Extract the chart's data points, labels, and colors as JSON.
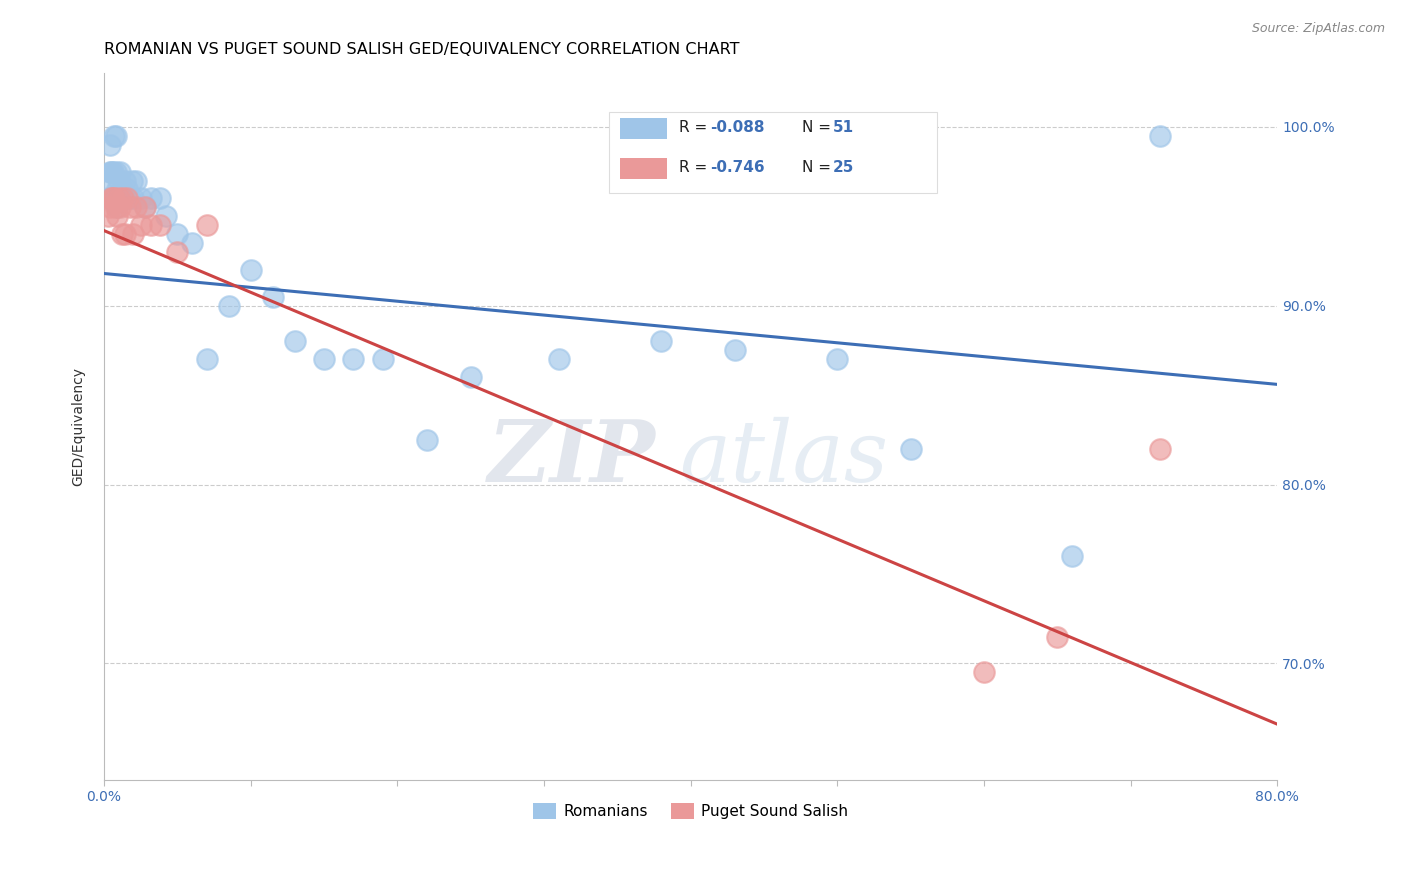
{
  "title": "ROMANIAN VS PUGET SOUND SALISH GED/EQUIVALENCY CORRELATION CHART",
  "source": "Source: ZipAtlas.com",
  "ylabel": "GED/Equivalency",
  "xlim": [
    0.0,
    0.8
  ],
  "ylim": [
    0.635,
    1.03
  ],
  "yticks": [
    0.7,
    0.8,
    0.9,
    1.0
  ],
  "ytick_labels": [
    "70.0%",
    "80.0%",
    "90.0%",
    "100.0%"
  ],
  "xticks": [
    0.0,
    0.1,
    0.2,
    0.3,
    0.4,
    0.5,
    0.6,
    0.7,
    0.8
  ],
  "xtick_labels": [
    "0.0%",
    "",
    "",
    "",
    "",
    "",
    "",
    "",
    "80.0%"
  ],
  "blue_color": "#9fc5e8",
  "pink_color": "#ea9999",
  "blue_line_color": "#3d6eb5",
  "pink_line_color": "#cc4444",
  "legend_label_blue": "Romanians",
  "legend_label_pink": "Puget Sound Salish",
  "watermark_zip": "ZIP",
  "watermark_atlas": "atlas",
  "blue_scatter_x": [
    0.002,
    0.003,
    0.004,
    0.004,
    0.005,
    0.005,
    0.006,
    0.006,
    0.007,
    0.007,
    0.008,
    0.008,
    0.009,
    0.009,
    0.01,
    0.01,
    0.011,
    0.011,
    0.012,
    0.013,
    0.014,
    0.015,
    0.016,
    0.018,
    0.019,
    0.02,
    0.022,
    0.025,
    0.028,
    0.032,
    0.038,
    0.042,
    0.05,
    0.06,
    0.07,
    0.085,
    0.1,
    0.115,
    0.13,
    0.15,
    0.17,
    0.19,
    0.22,
    0.25,
    0.31,
    0.38,
    0.43,
    0.5,
    0.55,
    0.66,
    0.72
  ],
  "blue_scatter_y": [
    0.97,
    0.96,
    0.975,
    0.99,
    0.96,
    0.975,
    0.96,
    0.975,
    0.995,
    0.96,
    0.975,
    0.995,
    0.965,
    0.955,
    0.96,
    0.97,
    0.96,
    0.975,
    0.965,
    0.96,
    0.97,
    0.96,
    0.965,
    0.96,
    0.97,
    0.96,
    0.97,
    0.96,
    0.955,
    0.96,
    0.96,
    0.95,
    0.94,
    0.935,
    0.87,
    0.9,
    0.92,
    0.905,
    0.88,
    0.87,
    0.87,
    0.87,
    0.825,
    0.86,
    0.87,
    0.88,
    0.875,
    0.87,
    0.82,
    0.76,
    0.995
  ],
  "pink_scatter_x": [
    0.003,
    0.004,
    0.005,
    0.006,
    0.007,
    0.008,
    0.009,
    0.01,
    0.011,
    0.012,
    0.013,
    0.014,
    0.016,
    0.018,
    0.02,
    0.022,
    0.025,
    0.028,
    0.032,
    0.038,
    0.05,
    0.07,
    0.6,
    0.65,
    0.72
  ],
  "pink_scatter_y": [
    0.95,
    0.955,
    0.96,
    0.96,
    0.96,
    0.955,
    0.95,
    0.96,
    0.955,
    0.94,
    0.96,
    0.94,
    0.96,
    0.955,
    0.94,
    0.955,
    0.945,
    0.955,
    0.945,
    0.945,
    0.93,
    0.945,
    0.695,
    0.715,
    0.82
  ],
  "blue_trendline_x": [
    0.0,
    0.8
  ],
  "blue_trendline_y": [
    0.918,
    0.856
  ],
  "pink_trendline_x": [
    0.0,
    0.8
  ],
  "pink_trendline_y": [
    0.942,
    0.666
  ],
  "title_fontsize": 11.5,
  "axis_fontsize": 10,
  "tick_fontsize": 10,
  "source_fontsize": 9,
  "background_color": "#ffffff",
  "grid_color": "#cccccc"
}
